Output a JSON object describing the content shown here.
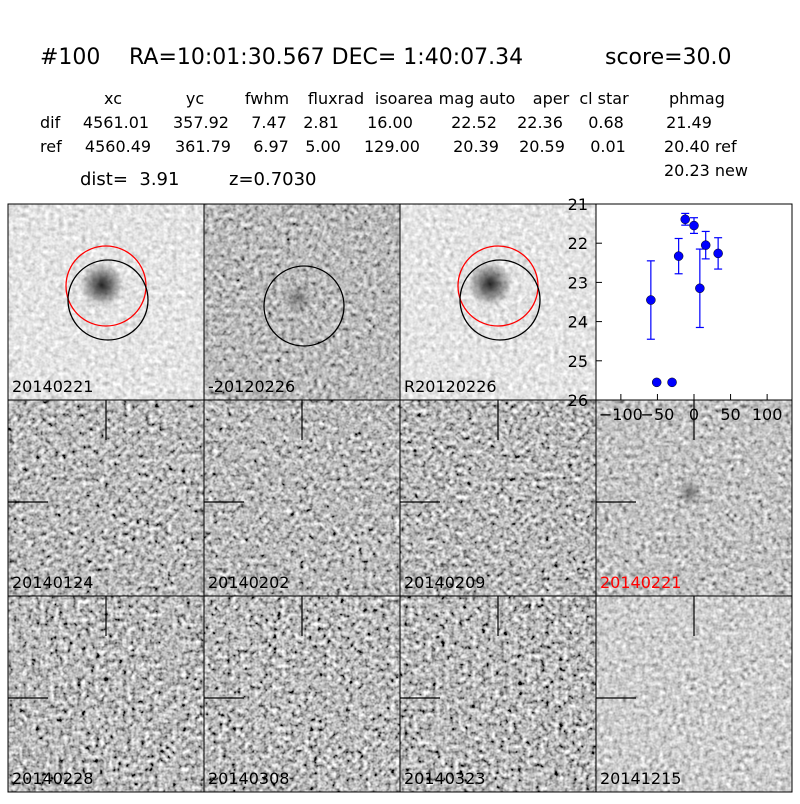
{
  "header": {
    "id": "#100",
    "coords": "RA=10:01:30.567 DEC= 1:40:07.34",
    "score": "score=30.0"
  },
  "table": {
    "columns": [
      "xc",
      "yc",
      "fwhm",
      "fluxrad",
      "isoarea",
      "mag auto",
      "aper",
      "cl star",
      "phmag"
    ],
    "rows": [
      [
        "dif",
        "4561.01",
        "357.92",
        "7.47",
        "2.81",
        "16.00",
        "22.52",
        "22.36",
        "0.68",
        "21.49"
      ],
      [
        "ref",
        "4560.49",
        "361.79",
        "6.97",
        "5.00",
        "129.00",
        "20.39",
        "20.59",
        "0.01",
        "20.40 ref"
      ]
    ],
    "extra": "20.23 new"
  },
  "dist": "dist=  3.91",
  "z": "z=0.7030",
  "stamps": [
    {
      "label": "20140221",
      "color": "#000000"
    },
    {
      "label": "-20120226",
      "color": "#000000"
    },
    {
      "label": "R20120226",
      "color": "#000000"
    },
    {
      "label": "20140124",
      "color": "#000000"
    },
    {
      "label": "20140202",
      "color": "#000000"
    },
    {
      "label": "20140209",
      "color": "#000000"
    },
    {
      "label": "20140221",
      "color": "#ff0000"
    },
    {
      "label": "20140228",
      "color": "#000000"
    },
    {
      "label": "20140308",
      "color": "#000000"
    },
    {
      "label": "20140323",
      "color": "#000000"
    },
    {
      "label": "20141215",
      "color": "#000000"
    }
  ],
  "chart_data": {
    "type": "scatter",
    "color": "#0000ff",
    "x": [
      -59,
      -51,
      -30,
      -21,
      -12,
      0,
      8,
      16,
      33
    ],
    "values": [
      23.45,
      25.55,
      25.55,
      22.33,
      21.39,
      21.55,
      23.15,
      22.05,
      22.26
    ],
    "errors": [
      1.0,
      null,
      null,
      0.45,
      0.15,
      0.2,
      1.0,
      0.35,
      0.4
    ],
    "xlim": [
      -134,
      134
    ],
    "ylim": [
      21,
      26
    ],
    "invert_y": true,
    "xticks": [
      {
        "value": -100,
        "label": "−100"
      },
      {
        "value": -50,
        "label": "−50"
      },
      0,
      50,
      100
    ],
    "yticks": [
      21,
      22,
      23,
      24,
      25,
      26
    ]
  }
}
